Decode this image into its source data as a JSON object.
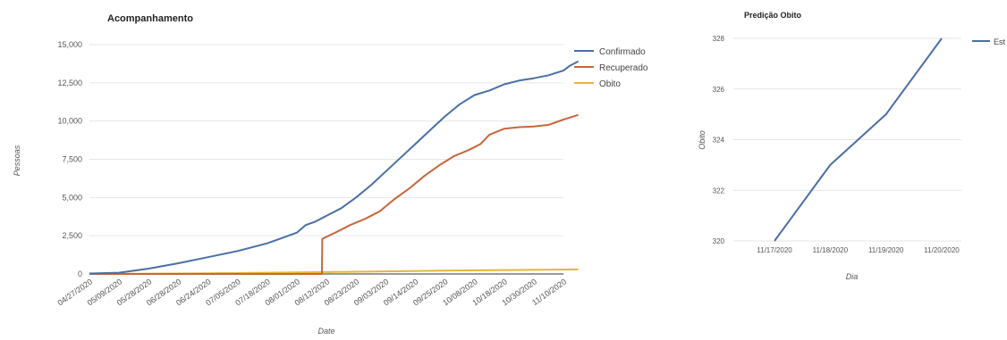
{
  "chart_data": [
    {
      "type": "line",
      "title": "Acompanhamento",
      "xlabel": "Date",
      "ylabel": "Pessoas",
      "ylim": [
        0,
        15000
      ],
      "yticks": [
        0,
        2500,
        5000,
        7500,
        10000,
        12500,
        15000
      ],
      "ytick_labels": [
        "0",
        "2,500",
        "5,000",
        "7,500",
        "10,000",
        "12,500",
        "15,000"
      ],
      "xtick_labels": [
        "04/27/2020",
        "05/09/2020",
        "05/28/2020",
        "06/28/2020",
        "06/24/2020",
        "07/05/2020",
        "07/18/2020",
        "08/01/2020",
        "08/12/2020",
        "08/23/2020",
        "09/03/2020",
        "09/14/2020",
        "09/25/2020",
        "10/08/2020",
        "10/18/2020",
        "10/30/2020",
        "11/10/2020"
      ],
      "legend_position": "right",
      "grid": true,
      "series": [
        {
          "name": "Confirmado",
          "color": "#4a6fa5",
          "x": [
            0,
            1,
            2,
            3,
            4,
            5,
            6,
            7,
            7.3,
            7.6,
            8,
            8.5,
            9,
            9.5,
            10,
            10.5,
            11,
            11.5,
            12,
            12.5,
            13,
            13.5,
            14,
            14.5,
            15,
            15.5,
            16,
            16.2,
            16.5
          ],
          "values": [
            30,
            80,
            350,
            700,
            1100,
            1500,
            2000,
            2700,
            3200,
            3400,
            3800,
            4300,
            5000,
            5800,
            6700,
            7600,
            8500,
            9400,
            10300,
            11100,
            11700,
            12000,
            12400,
            12650,
            12800,
            13000,
            13300,
            13600,
            13900
          ]
        },
        {
          "name": "Recuperado",
          "color": "#c8663c",
          "x": [
            0,
            7.85,
            7.86,
            8.3,
            8.8,
            9.3,
            9.8,
            10.3,
            10.8,
            11.3,
            11.8,
            12.3,
            12.8,
            13.2,
            13.5,
            14,
            14.5,
            15,
            15.5,
            16,
            16.5
          ],
          "values": [
            0,
            0,
            2300,
            2700,
            3200,
            3600,
            4100,
            4900,
            5600,
            6400,
            7100,
            7700,
            8100,
            8500,
            9100,
            9500,
            9600,
            9650,
            9750,
            10100,
            10400
          ]
        },
        {
          "name": "Obito",
          "color": "#e8b53a",
          "x": [
            0,
            4,
            8,
            12,
            16.5
          ],
          "values": [
            0,
            40,
            120,
            220,
            300
          ]
        }
      ]
    },
    {
      "type": "line",
      "title": "Predição Obito",
      "xlabel": "Dia",
      "ylabel": "Obito",
      "ylim": [
        320,
        328
      ],
      "yticks": [
        320,
        322,
        324,
        326,
        328
      ],
      "ytick_labels": [
        "320",
        "322",
        "324",
        "326",
        "328"
      ],
      "categories": [
        "11/17/2020",
        "11/18/2020",
        "11/19/2020",
        "11/20/2020"
      ],
      "legend_position": "right",
      "grid": true,
      "series": [
        {
          "name": "Est",
          "color": "#4a6fa5",
          "values": [
            320,
            323,
            325,
            328
          ]
        }
      ]
    }
  ]
}
